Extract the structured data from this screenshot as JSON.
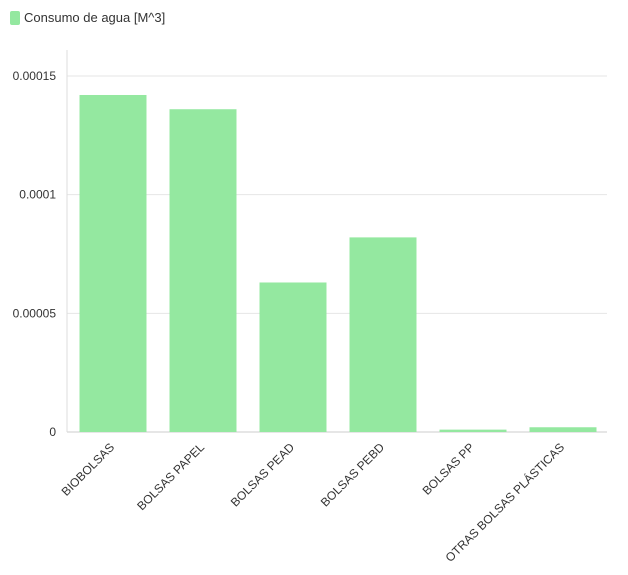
{
  "chart_data": {
    "type": "bar",
    "categories": [
      "BIOBOLSAS",
      "BOLSAS PAPEL",
      "BOLSAS PEAD",
      "BOLSAS PEBD",
      "BOLSAS PP",
      "OTRAS BOLSAS PLÁSTICAS"
    ],
    "series": [
      {
        "name": "Consumo de agua [M^3]",
        "values": [
          0.000142,
          0.000136,
          6.3e-05,
          8.2e-05,
          1e-06,
          2e-06
        ]
      }
    ],
    "y_ticks": [
      "0",
      "0.00005",
      "0.0001",
      "0.00015"
    ],
    "ylim": [
      0,
      0.00015
    ],
    "grid": true,
    "legend_position": "top-left",
    "bar_color": "#94e8a0"
  }
}
